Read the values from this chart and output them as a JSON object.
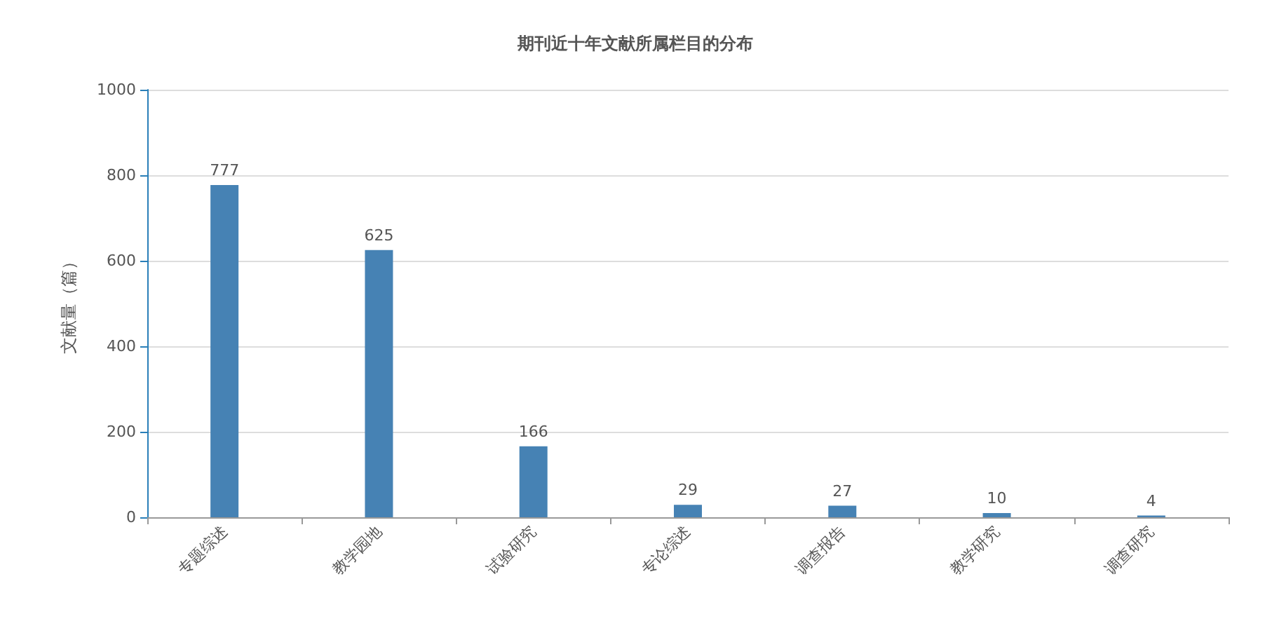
{
  "chart_data": {
    "type": "bar",
    "title": "期刊近十年文献所属栏目的分布",
    "ylabel": "文献量（篇）",
    "categories": [
      "专题综述",
      "教学园地",
      "试验研究",
      "专论综述",
      "调查报告",
      "教学研究",
      "调查研究"
    ],
    "values": [
      777,
      625,
      166,
      29,
      27,
      10,
      4
    ],
    "color": "#4682b4",
    "ylim": [
      0,
      1000
    ],
    "yticks": [
      0,
      200,
      400,
      600,
      800,
      1000
    ],
    "grid": "y",
    "data_labels": true
  }
}
